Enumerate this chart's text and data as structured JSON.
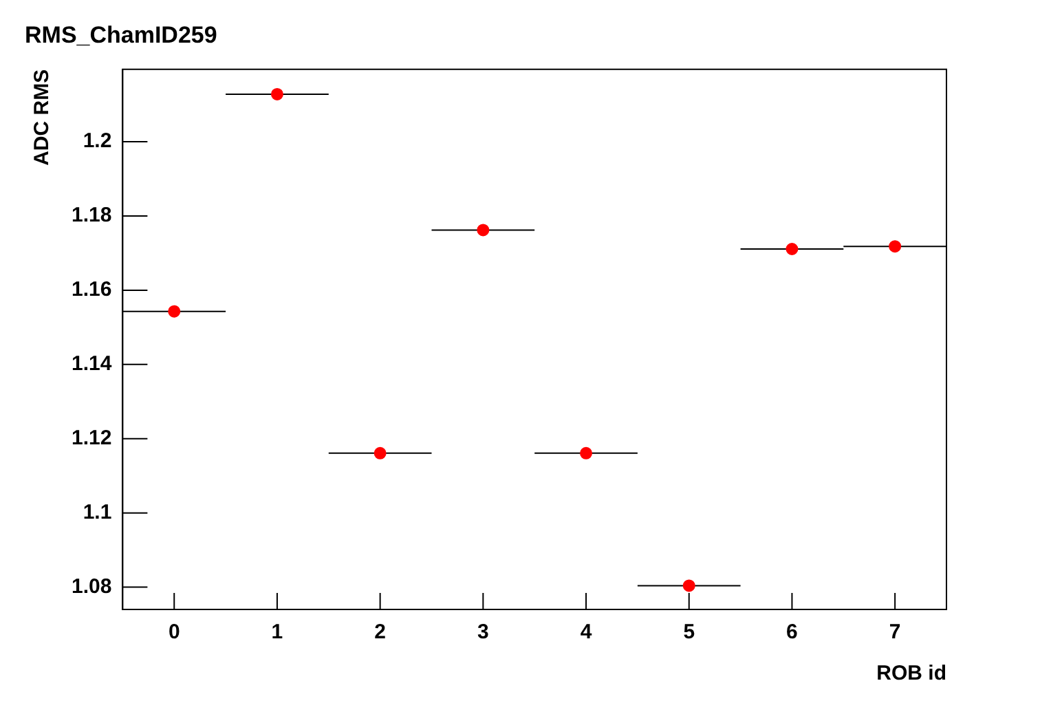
{
  "chart_data": {
    "type": "scatter",
    "title": "RMS_ChamID259",
    "xlabel": "ROB id",
    "ylabel": "ADC RMS",
    "x": [
      0,
      1,
      2,
      3,
      4,
      5,
      6,
      7
    ],
    "series": [
      {
        "color": "#ff0000",
        "values": [
          1.1543,
          1.2128,
          1.1161,
          1.1762,
          1.1161,
          1.0804,
          1.1711,
          1.1718
        ],
        "xerrors": [
          0.5,
          0.5,
          0.5,
          0.5,
          0.5,
          0.5,
          0.5,
          0.5
        ]
      }
    ],
    "xlim": [
      -0.5,
      7.5
    ],
    "xticks": [
      0,
      1,
      2,
      3,
      4,
      5,
      6,
      7
    ],
    "ylim": [
      1.074,
      1.2195
    ],
    "yticks": [
      {
        "value": 1.08,
        "label": "1.08"
      },
      {
        "value": 1.1,
        "label": "1.1"
      },
      {
        "value": 1.12,
        "label": "1.12"
      },
      {
        "value": 1.14,
        "label": "1.14"
      },
      {
        "value": 1.16,
        "label": "1.16"
      },
      {
        "value": 1.18,
        "label": "1.18"
      },
      {
        "value": 1.2,
        "label": "1.2"
      }
    ],
    "grid": false,
    "legend": false,
    "marker": "circle"
  }
}
